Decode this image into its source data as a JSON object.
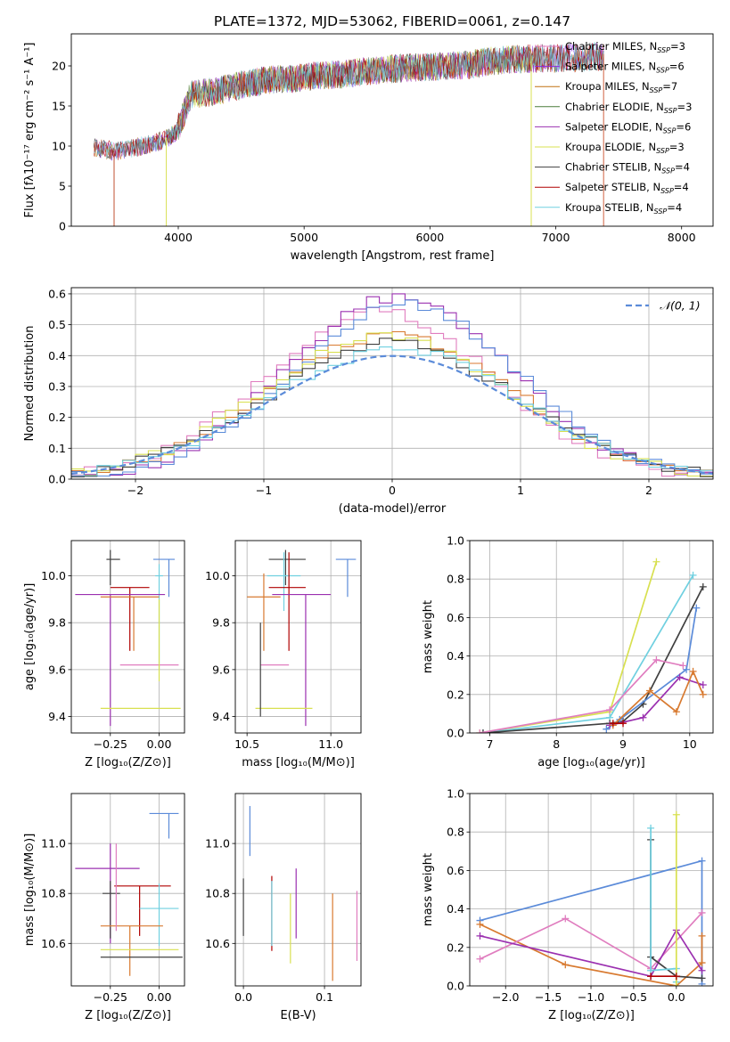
{
  "figure_title": "PLATE=1372, MJD=53062, FIBERID=0061, z=0.147",
  "chart_data": [
    {
      "id": "spectrum",
      "type": "line",
      "title": "PLATE=1372, MJD=53062, FIBERID=0061, z=0.147",
      "xlabel": "wavelength [Angstrom, rest frame]",
      "ylabel": "Flux [fλ10⁻¹⁷ erg cm⁻² s⁻¹ A⁻¹]",
      "xlim": [
        3150,
        8250
      ],
      "ylim": [
        0,
        24
      ],
      "xticks": [
        4000,
        5000,
        6000,
        7000,
        8000
      ],
      "yticks": [
        0,
        5,
        10,
        15,
        20
      ],
      "grid": false,
      "legend_position": "upper right",
      "legend_note": "legend overlaps data in original",
      "data_note": "continuum approximated; spectra are noisy SSP model fits",
      "continuum": {
        "x": [
          3330,
          3500,
          3700,
          3900,
          3990,
          4100,
          4300,
          4500,
          4700,
          4900,
          5100,
          5300,
          5500,
          5700,
          5900,
          6100,
          6300,
          6500,
          6700,
          6900,
          7100,
          7300,
          7350
        ],
        "y": [
          10,
          9.6,
          10.2,
          11,
          12.2,
          16.8,
          17.2,
          18,
          18.6,
          18.7,
          19.2,
          19.3,
          19.7,
          20,
          20.2,
          20.3,
          20.5,
          21,
          21.2,
          21.3,
          21.3,
          21.5,
          21.5
        ]
      },
      "series": [
        {
          "name": "Chabrier MILES, N_SSP=3",
          "label_main": "Chabrier MILES, N",
          "label_sub": "SSP",
          "label_tail": "=3",
          "color": "#e07dbf",
          "xrange": [
            3330,
            7380
          ]
        },
        {
          "name": "Salpeter MILES, N_SSP=6",
          "label_main": "Salpeter MILES, N",
          "label_sub": "SSP",
          "label_tail": "=6",
          "color": "#8a2be2",
          "xrange": [
            3330,
            7380
          ]
        },
        {
          "name": "Kroupa MILES, N_SSP=7",
          "label_main": "Kroupa MILES, N",
          "label_sub": "SSP",
          "label_tail": "=7",
          "color": "#c07010",
          "xrange": [
            3330,
            7380
          ]
        },
        {
          "name": "Chabrier ELODIE, N_SSP=3",
          "label_main": "Chabrier ELODIE, N",
          "label_sub": "SSP",
          "label_tail": "=3",
          "color": "#4a7d3a",
          "xrange": [
            3900,
            6800
          ]
        },
        {
          "name": "Salpeter ELODIE, N_SSP=6",
          "label_main": "Salpeter ELODIE, N",
          "label_sub": "SSP",
          "label_tail": "=6",
          "color": "#9b30b0",
          "xrange": [
            3900,
            6800
          ]
        },
        {
          "name": "Kroupa ELODIE, N_SSP=3",
          "label_main": "Kroupa ELODIE, N",
          "label_sub": "SSP",
          "label_tail": "=3",
          "color": "#d8e050",
          "xrange": [
            3900,
            6800
          ]
        },
        {
          "name": "Chabrier STELIB, N_SSP=4",
          "label_main": "Chabrier STELIB, N",
          "label_sub": "SSP",
          "label_tail": "=4",
          "color": "#404040",
          "xrange": [
            3330,
            7380
          ]
        },
        {
          "name": "Salpeter STELIB, N_SSP=4",
          "label_main": "Salpeter STELIB, N",
          "label_sub": "SSP",
          "label_tail": "=4",
          "color": "#b00000",
          "xrange": [
            3330,
            7380
          ]
        },
        {
          "name": "Kroupa STELIB, N_SSP=4",
          "label_main": "Kroupa STELIB, N",
          "label_sub": "SSP",
          "label_tail": "=4",
          "color": "#70d0e0",
          "xrange": [
            3330,
            7380
          ]
        }
      ]
    },
    {
      "id": "residuals",
      "type": "histogram",
      "xlabel": "(data-model)/error",
      "ylabel": "Normed distribution",
      "xlim": [
        -2.5,
        2.5
      ],
      "ylim": [
        0,
        0.62
      ],
      "xticks": [
        -2,
        -1,
        0,
        1,
        2
      ],
      "yticks": [
        0.0,
        0.1,
        0.2,
        0.3,
        0.4,
        0.5,
        0.6
      ],
      "grid": true,
      "legend_position": "upper right",
      "reference_label": "𝒩(0, 1)",
      "reference_color": "#5b8bd9",
      "bin_width": 0.1,
      "histograms": [
        {
          "color": "#e07dbf",
          "peak": 0.54,
          "offset": -0.1
        },
        {
          "color": "#9b30b0",
          "peak": 0.59,
          "offset": 0.05
        },
        {
          "color": "#d87a30",
          "peak": 0.47,
          "offset": 0.0
        },
        {
          "color": "#5b8bd9",
          "peak": 0.57,
          "offset": 0.1
        },
        {
          "color": "#d8e050",
          "peak": 0.46,
          "offset": -0.05
        },
        {
          "color": "#404040",
          "peak": 0.44,
          "offset": 0.0
        },
        {
          "color": "#70d0e0",
          "peak": 0.42,
          "offset": 0.02
        }
      ]
    },
    {
      "id": "z_vs_age",
      "type": "errorbar",
      "xlabel": "Z [log₁₀(Z/Z⊙)]",
      "ylabel": "age  [log₁₀(age/yr)]",
      "xlim": [
        -0.45,
        0.13
      ],
      "ylim": [
        9.33,
        10.15
      ],
      "xticks": [
        -0.25,
        0.0
      ],
      "xticklabels": [
        "−0.25",
        "0.00"
      ],
      "yticks": [
        9.4,
        9.6,
        9.8,
        10.0
      ],
      "grid": true,
      "points": [
        {
          "x": 0.05,
          "y": 10.07,
          "xerr": [
            0.08,
            0.03
          ],
          "yerr": [
            0.16,
            0.0
          ],
          "color": "#5b8bd9"
        },
        {
          "x": -0.25,
          "y": 10.07,
          "xerr": [
            0.02,
            0.05
          ],
          "yerr": [
            0.11,
            0.04
          ],
          "color": "#404040"
        },
        {
          "x": 0.0,
          "y": 10.0,
          "xerr": [
            0.02,
            0.02
          ],
          "yerr": [
            0.4,
            0.05
          ],
          "color": "#70d0e0"
        },
        {
          "x": -0.15,
          "y": 9.95,
          "xerr": [
            0.1,
            0.1
          ],
          "yerr": [
            0.27,
            0.0
          ],
          "color": "#b00000"
        },
        {
          "x": -0.25,
          "y": 9.92,
          "xerr": [
            0.18,
            0.28
          ],
          "yerr": [
            0.56,
            0.0
          ],
          "color": "#9b30b0"
        },
        {
          "x": -0.13,
          "y": 9.91,
          "xerr": [
            0.17,
            0.13
          ],
          "yerr": [
            0.23,
            0.0
          ],
          "color": "#d87a30"
        },
        {
          "x": -0.05,
          "y": 9.62,
          "xerr": [
            0.15,
            0.15
          ],
          "yerr": [
            0.0,
            0.0
          ],
          "color": "#e07dbf"
        },
        {
          "x": -0.05,
          "y": 9.435,
          "xerr": [
            0.25,
            0.16
          ],
          "yerr": [
            0.0,
            0.0
          ],
          "color": "#d8e050"
        },
        {
          "x": 0.0,
          "y": 9.9,
          "xerr": [
            0.0,
            0.0
          ],
          "yerr": [
            0.35,
            0.0
          ],
          "color": "#d8e050"
        }
      ]
    },
    {
      "id": "mass_vs_age",
      "type": "errorbar",
      "xlabel": "mass [log₁₀(M/M⊙)]",
      "ylabel": "",
      "xlim": [
        10.43,
        11.18
      ],
      "ylim": [
        9.33,
        10.15
      ],
      "xticks": [
        10.5,
        11.0
      ],
      "xticklabels": [
        "10.5",
        "11.0"
      ],
      "yticks": [
        9.4,
        9.6,
        9.8,
        10.0
      ],
      "grid": true,
      "points": [
        {
          "x": 11.1,
          "y": 10.07,
          "xerr": [
            0.07,
            0.05
          ],
          "yerr": [
            0.16,
            0.0
          ],
          "color": "#5b8bd9"
        },
        {
          "x": 10.73,
          "y": 10.07,
          "xerr": [
            0.1,
            0.12
          ],
          "yerr": [
            0.11,
            0.04
          ],
          "color": "#404040"
        },
        {
          "x": 10.72,
          "y": 10.0,
          "xerr": [
            0.1,
            0.1
          ],
          "yerr": [
            0.15,
            0.1
          ],
          "color": "#70d0e0"
        },
        {
          "x": 10.75,
          "y": 9.95,
          "xerr": [
            0.12,
            0.1
          ],
          "yerr": [
            0.27,
            0.15
          ],
          "color": "#b00000"
        },
        {
          "x": 10.85,
          "y": 9.92,
          "xerr": [
            0.2,
            0.15
          ],
          "yerr": [
            0.56,
            0.0
          ],
          "color": "#9b30b0"
        },
        {
          "x": 10.6,
          "y": 9.91,
          "xerr": [
            0.1,
            0.1
          ],
          "yerr": [
            0.23,
            0.1
          ],
          "color": "#d87a30"
        },
        {
          "x": 10.65,
          "y": 9.62,
          "xerr": [
            0.07,
            0.1
          ],
          "yerr": [
            0.0,
            0.0
          ],
          "color": "#e07dbf"
        },
        {
          "x": 10.72,
          "y": 9.435,
          "xerr": [
            0.17,
            0.17
          ],
          "yerr": [
            0.0,
            0.0
          ],
          "color": "#d8e050"
        },
        {
          "x": 10.58,
          "y": 9.8,
          "xerr": [
            0.0,
            0.0
          ],
          "yerr": [
            0.4,
            0.0
          ],
          "color": "#404040"
        }
      ]
    },
    {
      "id": "age_vs_weight",
      "type": "line",
      "xlabel": "age  [log₁₀(age/yr)]",
      "ylabel": "mass weight",
      "xlim": [
        6.7,
        10.35
      ],
      "ylim": [
        0,
        1.0
      ],
      "xticks": [
        7,
        8,
        9,
        10
      ],
      "yticks": [
        0.0,
        0.2,
        0.4,
        0.6,
        0.8,
        1.0
      ],
      "grid": true,
      "series": [
        {
          "color": "#d8e050",
          "x": [
            6.85,
            8.8,
            9.5
          ],
          "y": [
            0.0,
            0.11,
            0.89
          ]
        },
        {
          "color": "#70d0e0",
          "x": [
            6.9,
            8.8,
            10.05
          ],
          "y": [
            0.0,
            0.08,
            0.82
          ]
        },
        {
          "color": "#404040",
          "x": [
            6.9,
            8.8,
            9.0,
            9.3,
            10.2
          ],
          "y": [
            0.0,
            0.05,
            0.06,
            0.15,
            0.76
          ]
        },
        {
          "color": "#5b8bd9",
          "x": [
            8.75,
            8.95,
            9.95,
            10.1
          ],
          "y": [
            0.02,
            0.07,
            0.33,
            0.65
          ]
        },
        {
          "color": "#e07dbf",
          "x": [
            6.85,
            8.8,
            9.5,
            9.9
          ],
          "y": [
            0.0,
            0.12,
            0.38,
            0.35
          ]
        },
        {
          "color": "#9b30b0",
          "x": [
            8.8,
            9.3,
            9.85,
            10.2
          ],
          "y": [
            0.04,
            0.08,
            0.29,
            0.25
          ]
        },
        {
          "color": "#d87a30",
          "x": [
            8.85,
            9.4,
            9.8,
            10.05,
            10.2
          ],
          "y": [
            0.04,
            0.22,
            0.11,
            0.32,
            0.2
          ]
        },
        {
          "color": "#b00000",
          "x": [
            8.85,
            9.0
          ],
          "y": [
            0.05,
            0.05
          ]
        }
      ]
    },
    {
      "id": "z_vs_mass",
      "type": "errorbar",
      "xlabel": "Z [log₁₀(Z/Z⊙)]",
      "ylabel": "mass [log₁₀(M/M⊙)]",
      "xlim": [
        -0.45,
        0.13
      ],
      "ylim": [
        10.43,
        11.2
      ],
      "xticks": [
        -0.25,
        0.0
      ],
      "xticklabels": [
        "−0.25",
        "0.00"
      ],
      "yticks": [
        10.6,
        10.8,
        11.0
      ],
      "grid": true,
      "points": [
        {
          "x": 0.05,
          "y": 11.12,
          "xerr": [
            0.1,
            0.05
          ],
          "yerr": [
            0.1,
            0.0
          ],
          "color": "#5b8bd9"
        },
        {
          "x": -0.25,
          "y": 10.9,
          "xerr": [
            0.18,
            0.15
          ],
          "yerr": [
            0.3,
            0.1
          ],
          "color": "#9b30b0"
        },
        {
          "x": -0.1,
          "y": 10.83,
          "xerr": [
            0.13,
            0.16
          ],
          "yerr": [
            0.2,
            0.0
          ],
          "color": "#b00000"
        },
        {
          "x": -0.25,
          "y": 10.8,
          "xerr": [
            0.04,
            0.05
          ],
          "yerr": [
            0.18,
            0.05
          ],
          "color": "#404040"
        },
        {
          "x": 0.0,
          "y": 10.74,
          "xerr": [
            0.1,
            0.1
          ],
          "yerr": [
            0.15,
            0.1
          ],
          "color": "#70d0e0"
        },
        {
          "x": -0.15,
          "y": 10.67,
          "xerr": [
            0.15,
            0.17
          ],
          "yerr": [
            0.2,
            0.0
          ],
          "color": "#d87a30"
        },
        {
          "x": -0.2,
          "y": 10.575,
          "xerr": [
            0.1,
            0.3
          ],
          "yerr": [
            0.0,
            0.0
          ],
          "color": "#d8e050"
        },
        {
          "x": -0.1,
          "y": 10.545,
          "xerr": [
            0.2,
            0.22
          ],
          "yerr": [
            0.0,
            0.0
          ],
          "color": "#404040"
        },
        {
          "x": -0.22,
          "y": 10.85,
          "xerr": [
            0.0,
            0.0
          ],
          "yerr": [
            0.2,
            0.15
          ],
          "color": "#e07dbf"
        }
      ]
    },
    {
      "id": "ebv_vs_mass",
      "type": "errorbar",
      "xlabel": "E(B-V)",
      "ylabel": "",
      "xlim": [
        -0.01,
        0.145
      ],
      "ylim": [
        10.43,
        11.2
      ],
      "xticks": [
        0.0,
        0.1
      ],
      "xticklabels": [
        "0.0",
        "0.1"
      ],
      "yticks": [
        10.6,
        10.8,
        11.0
      ],
      "grid": true,
      "points": [
        {
          "x": 0.0,
          "y": 10.75,
          "yerr": [
            0.12,
            0.11
          ],
          "color": "#404040"
        },
        {
          "x": 0.008,
          "y": 11.05,
          "yerr": [
            0.1,
            0.1
          ],
          "color": "#5b8bd9"
        },
        {
          "x": 0.035,
          "y": 10.75,
          "yerr": [
            0.18,
            0.12
          ],
          "color": "#b00000"
        },
        {
          "x": 0.035,
          "y": 10.75,
          "yerr": [
            0.16,
            0.1
          ],
          "color": "#70d0e0"
        },
        {
          "x": 0.058,
          "y": 10.7,
          "yerr": [
            0.18,
            0.1
          ],
          "color": "#d8e050"
        },
        {
          "x": 0.065,
          "y": 10.75,
          "yerr": [
            0.13,
            0.15
          ],
          "color": "#9b30b0"
        },
        {
          "x": 0.11,
          "y": 10.62,
          "yerr": [
            0.17,
            0.18
          ],
          "color": "#d87a30"
        },
        {
          "x": 0.14,
          "y": 10.65,
          "yerr": [
            0.12,
            0.16
          ],
          "color": "#e07dbf"
        }
      ]
    },
    {
      "id": "z_vs_weight",
      "type": "line",
      "xlabel": "Z [log₁₀(Z/Z⊙)]",
      "ylabel": "mass weight",
      "xlim": [
        -2.42,
        0.43
      ],
      "ylim": [
        0,
        1.0
      ],
      "xticks": [
        -2.0,
        -1.5,
        -1.0,
        -0.5,
        0.0
      ],
      "xticklabels": [
        "−2.0",
        "−1.5",
        "−1.0",
        "−0.5",
        "0.0"
      ],
      "yticks": [
        0.0,
        0.2,
        0.4,
        0.6,
        0.8,
        1.0
      ],
      "grid": true,
      "series": [
        {
          "color": "#5b8bd9",
          "x": [
            -2.3,
            0.3,
            0.3
          ],
          "y": [
            0.34,
            0.65,
            0.01
          ]
        },
        {
          "color": "#d87a30",
          "x": [
            -2.3,
            -1.3,
            0.0,
            0.3,
            0.3
          ],
          "y": [
            0.32,
            0.11,
            0.0,
            0.12,
            0.26
          ]
        },
        {
          "color": "#e07dbf",
          "x": [
            -2.3,
            -1.3,
            -0.3,
            0.3
          ],
          "y": [
            0.14,
            0.35,
            0.09,
            0.38
          ]
        },
        {
          "color": "#9b30b0",
          "x": [
            -2.3,
            -0.3,
            0.0,
            0.3
          ],
          "y": [
            0.26,
            0.05,
            0.29,
            0.08
          ]
        },
        {
          "color": "#404040",
          "x": [
            -0.3,
            -0.3,
            0.0,
            0.3
          ],
          "y": [
            0.76,
            0.15,
            0.05,
            0.04
          ]
        },
        {
          "color": "#70d0e0",
          "x": [
            -0.3,
            -0.3,
            0.0,
            0.0
          ],
          "y": [
            0.82,
            0.08,
            0.09,
            0.02
          ]
        },
        {
          "color": "#d8e050",
          "x": [
            0.0,
            0.0
          ],
          "y": [
            0.89,
            0.0
          ]
        },
        {
          "color": "#b00000",
          "x": [
            -0.3,
            0.0
          ],
          "y": [
            0.05,
            0.05
          ]
        }
      ]
    }
  ]
}
